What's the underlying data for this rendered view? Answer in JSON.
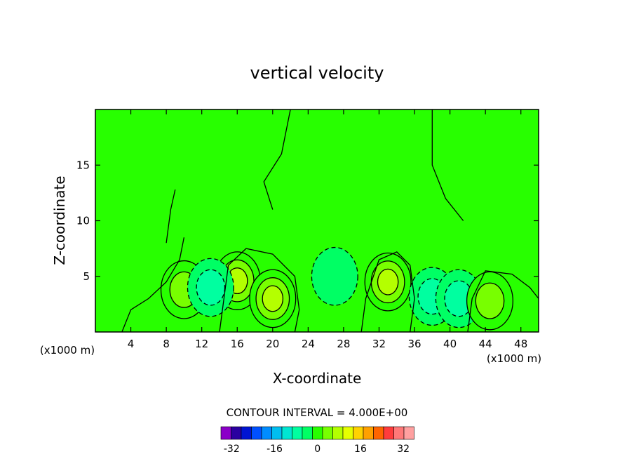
{
  "chart_data": {
    "type": "heatmap",
    "title": "vertical velocity",
    "xlabel": "X-coordinate",
    "ylabel": "Z-coordinate",
    "x_unit_left": "(x1000 m)",
    "x_unit_right": "(x1000 m)",
    "xlim": [
      0,
      50
    ],
    "ylim": [
      0,
      20
    ],
    "x_ticks": [
      4,
      8,
      12,
      16,
      20,
      24,
      28,
      32,
      36,
      40,
      44,
      48
    ],
    "y_ticks": [
      5,
      10,
      15
    ],
    "contour_interval_label": "CONTOUR INTERVAL = 4.000E+00",
    "contour_interval": 4,
    "colorbar": {
      "levels": [
        -36,
        -32,
        -28,
        -24,
        -20,
        -16,
        -12,
        -8,
        -4,
        0,
        4,
        8,
        12,
        16,
        20,
        24,
        28,
        32,
        36
      ],
      "tick_labels": [
        "-32",
        "-16",
        "0",
        "16",
        "32"
      ],
      "tick_values": [
        -32,
        -16,
        0,
        16,
        32
      ],
      "colors": [
        "#8b00c8",
        "#2a00a0",
        "#0014d2",
        "#0050ff",
        "#008cff",
        "#00bef0",
        "#00e6d2",
        "#00ffa0",
        "#00ff64",
        "#28ff00",
        "#78ff00",
        "#b4ff00",
        "#e6ff00",
        "#ffd200",
        "#ffa000",
        "#ff6400",
        "#ff3c3c",
        "#ff7878",
        "#ffa0a0"
      ]
    },
    "background_value": 0,
    "features": [
      {
        "type": "updraft",
        "x": 16,
        "z": 4.6,
        "peak": 12
      },
      {
        "type": "updraft",
        "x": 20,
        "z": 3.0,
        "peak": 12
      },
      {
        "type": "updraft",
        "x": 10,
        "z": 3.8,
        "peak": 8
      },
      {
        "type": "downdraft",
        "x": 13,
        "z": 4.0,
        "peak": -8
      },
      {
        "type": "updraft",
        "x": 33,
        "z": 4.5,
        "peak": 12
      },
      {
        "type": "downdraft",
        "x": 38,
        "z": 3.2,
        "peak": -8
      },
      {
        "type": "downdraft",
        "x": 41,
        "z": 3.0,
        "peak": -8
      },
      {
        "type": "updraft",
        "x": 44.5,
        "z": 2.8,
        "peak": 8
      },
      {
        "type": "downdraft",
        "x": 27,
        "z": 5.0,
        "peak": -4
      }
    ]
  }
}
